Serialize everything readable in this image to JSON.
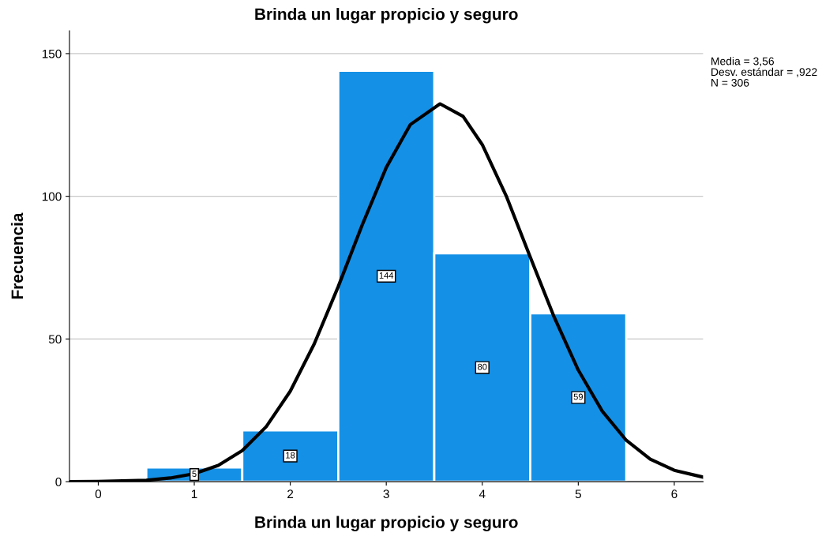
{
  "chart_data": {
    "type": "histogram",
    "title": "Brinda un lugar propicio y seguro",
    "xlabel": "Brinda un lugar propicio y seguro",
    "ylabel": "Frecuencia",
    "bins": [
      0.5,
      1.5,
      2.5,
      3.5,
      4.5,
      5.5
    ],
    "values": [
      5,
      18,
      144,
      80,
      59
    ],
    "color": "#1490e6",
    "value_labels": [
      "5",
      "18",
      "144",
      "80",
      "59"
    ],
    "series": [
      {
        "type": "line",
        "color": "#000000",
        "x": [
          -0.3,
          0,
          0.5,
          0.75,
          1,
          1.25,
          1.5,
          1.75,
          2,
          2.25,
          2.5,
          2.75,
          3,
          3.25,
          3.56,
          3.8,
          4,
          4.25,
          4.5,
          4.75,
          5,
          5.25,
          5.5,
          5.75,
          6,
          6.3
        ],
        "values": [
          0,
          0.1,
          0.5,
          1.3,
          2.8,
          5.7,
          10.9,
          19.3,
          31.7,
          48.3,
          68.4,
          90.0,
          110.1,
          125.1,
          132.4,
          128.0,
          118.1,
          100.1,
          78.7,
          57.6,
          39.1,
          24.7,
          14.5,
          7.9,
          4.0,
          1.6
        ]
      }
    ],
    "xlim": [
      -0.3,
      6.3
    ],
    "xticks": [
      0,
      1,
      2,
      3,
      4,
      5,
      6
    ],
    "ylim": [
      0,
      158
    ],
    "yticks": [
      0,
      50,
      100,
      150
    ],
    "grid": "y",
    "annotations": [
      "Media = 3,56",
      "Desv. estándar = ,922",
      "N = 306"
    ]
  }
}
